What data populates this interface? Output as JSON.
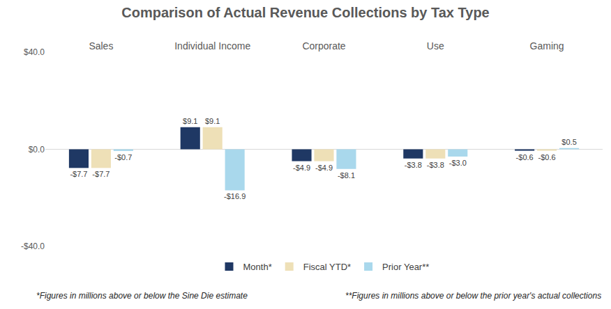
{
  "chart_data": {
    "type": "bar",
    "title": "Comparison of Actual Revenue Collections by Tax Type",
    "categories": [
      "Sales",
      "Individual Income",
      "Corporate",
      "Use",
      "Gaming"
    ],
    "series": [
      {
        "name": "Month*",
        "color": "#1f3864",
        "values": [
          -7.7,
          9.1,
          -4.9,
          -3.8,
          -0.6
        ],
        "value_labels": [
          "-$7.7",
          "$9.1",
          "-$4.9",
          "-$3.8",
          "-$0.6"
        ]
      },
      {
        "name": "Fiscal YTD*",
        "color": "#eee0b7",
        "values": [
          -7.7,
          9.1,
          -4.9,
          -3.8,
          -0.6
        ],
        "value_labels": [
          "-$7.7",
          "$9.1",
          "-$4.9",
          "-$3.8",
          "-$0.6"
        ]
      },
      {
        "name": "Prior Year**",
        "color": "#a9d8ec",
        "values": [
          -0.7,
          -16.9,
          -8.1,
          -3.0,
          0.5
        ],
        "value_labels": [
          "-$0.7",
          "-$16.9",
          "-$8.1",
          "-$3.0",
          "$0.5"
        ]
      }
    ],
    "ylim": [
      -40,
      40
    ],
    "yticks": [
      {
        "value": -40,
        "label": "-$40.0"
      },
      {
        "value": 0,
        "label": "$0.0"
      },
      {
        "value": 40,
        "label": "$40.0"
      }
    ],
    "grid": true,
    "legend": "bottom",
    "data_labels": true,
    "annotations": [
      "*Figures in millions above or below the Sine Die estimate",
      "**Figures in millions above or below the prior year's actual collections"
    ]
  }
}
